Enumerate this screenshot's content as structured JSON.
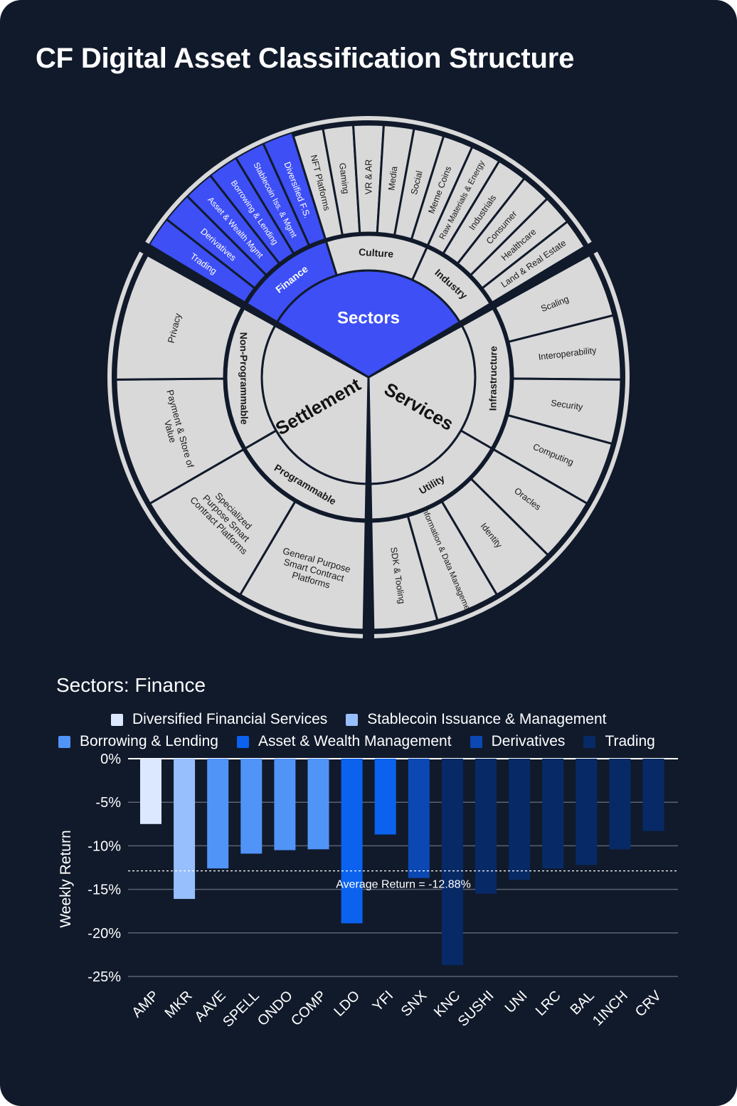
{
  "title": "CF Digital Asset Classification Structure",
  "wheel": {
    "center_label": "Sectors",
    "groups": [
      {
        "name": "Settlement",
        "industries": [
          {
            "name": "Programmable",
            "subsectors": [
              "General Purpose Smart Contract Platforms",
              "Specialized Purpose Smart Contract Platforms"
            ]
          },
          {
            "name": "Non-Programmable",
            "subsectors": [
              "Payment & Store of Value",
              "Privacy"
            ]
          }
        ]
      },
      {
        "name": "Services",
        "industries": [
          {
            "name": "Infrastructure",
            "subsectors": [
              "Scaling",
              "Interoperability",
              "Security",
              "Computing"
            ]
          },
          {
            "name": "Utility",
            "subsectors": [
              "Oracles",
              "Identity",
              "Information & Data Management",
              "SDK & Tooling"
            ]
          }
        ]
      },
      {
        "name": "Sectors",
        "industries": [
          {
            "name": "Industry",
            "subsectors": [
              "Land & Real Estate",
              "Healthcare",
              "Consumer",
              "Industrials",
              "Raw Materials & Energy"
            ]
          },
          {
            "name": "Culture",
            "subsectors": [
              "Meme Coins",
              "Social",
              "Media",
              "VR & AR",
              "Gaming",
              "NFT Platforms"
            ]
          },
          {
            "name": "Finance",
            "highlight": true,
            "subsectors": [
              "Diversified F.S.",
              "Stablecoin Iss. & Mgmt",
              "Borrowing & Lending",
              "Asset & Wealth Mgmt",
              "Derivatives",
              "Trading"
            ]
          }
        ]
      }
    ],
    "colors": {
      "highlight": "#3d4ff5",
      "fill": "#d9d9d9",
      "outline": "#111a2b"
    }
  },
  "chart_data": {
    "type": "bar",
    "title": "Sectors: Finance",
    "ylabel": "Weekly Return",
    "xlabel": "",
    "ylim": [
      -25,
      0
    ],
    "yticks": [
      0,
      -5,
      -10,
      -15,
      -20,
      -25
    ],
    "ytick_labels": [
      "0%",
      "-5%",
      "-10%",
      "-15%",
      "-20%",
      "-25%"
    ],
    "grid": true,
    "legend": [
      {
        "name": "Diversified Financial Services",
        "color": "#dce8ff"
      },
      {
        "name": "Stablecoin Issuance & Management",
        "color": "#97bffd"
      },
      {
        "name": "Borrowing & Lending",
        "color": "#5194f8"
      },
      {
        "name": "Asset & Wealth Management",
        "color": "#0a62ef"
      },
      {
        "name": "Derivatives",
        "color": "#0b48b4"
      },
      {
        "name": "Trading",
        "color": "#072a66"
      }
    ],
    "categories": [
      "AMP",
      "MKR",
      "AAVE",
      "SPELL",
      "ONDO",
      "COMP",
      "LDO",
      "YFI",
      "SNX",
      "KNC",
      "SUSHI",
      "UNI",
      "LRC",
      "BAL",
      "1INCH",
      "CRV"
    ],
    "values": [
      -7.5,
      -16.1,
      -12.6,
      -10.9,
      -10.5,
      -10.4,
      -18.9,
      -8.7,
      -13.7,
      -23.7,
      -15.5,
      -13.9,
      -12.6,
      -12.2,
      -10.4,
      -8.3
    ],
    "series_index": [
      0,
      1,
      2,
      2,
      2,
      2,
      3,
      3,
      4,
      5,
      5,
      5,
      5,
      5,
      5,
      5
    ],
    "average": {
      "value": -12.88,
      "label": "Average Return = -12.88%"
    }
  }
}
